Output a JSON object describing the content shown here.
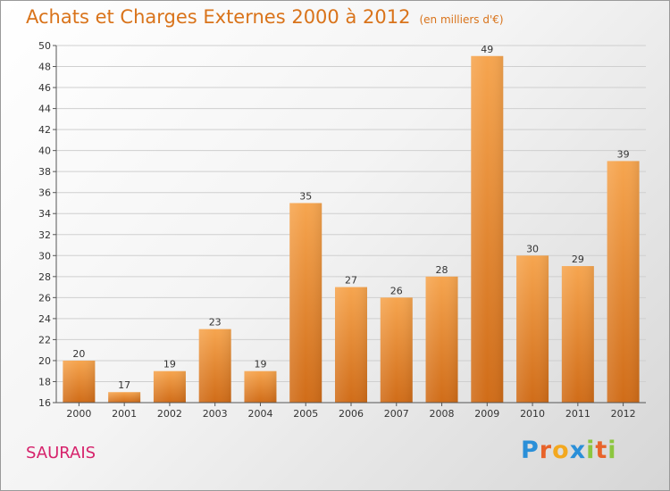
{
  "header": {
    "title": "Achats et Charges Externes 2000 à 2012",
    "subtitle": "(en milliers d'€)"
  },
  "footer": {
    "commune": "SAURAIS",
    "brand_letters": [
      {
        "char": "P",
        "color": "#2a8fd8"
      },
      {
        "char": "r",
        "color": "#e8632a"
      },
      {
        "char": "o",
        "color": "#f3a81f"
      },
      {
        "char": "x",
        "color": "#2a8fd8"
      },
      {
        "char": "i",
        "color": "#8cc63f"
      },
      {
        "char": "t",
        "color": "#e8632a"
      },
      {
        "char": "i",
        "color": "#8cc63f"
      }
    ]
  },
  "colors": {
    "bar_light": "#f6a54f",
    "bar_dark": "#d06c18",
    "grid": "#cfcfcf",
    "title": "#d9731a",
    "commune": "#d6226b"
  },
  "chart_data": {
    "type": "bar",
    "title": "Achats et Charges Externes 2000 à 2012",
    "subtitle": "(en milliers d'€)",
    "categories": [
      "2000",
      "2001",
      "2002",
      "2003",
      "2004",
      "2005",
      "2006",
      "2007",
      "2008",
      "2009",
      "2010",
      "2011",
      "2012"
    ],
    "values": [
      20,
      17,
      19,
      23,
      19,
      35,
      27,
      26,
      28,
      49,
      30,
      29,
      39
    ],
    "ylim": [
      16,
      50
    ],
    "yticks": [
      16,
      18,
      20,
      22,
      24,
      26,
      28,
      30,
      32,
      34,
      36,
      38,
      40,
      42,
      44,
      46,
      48,
      50
    ],
    "grid": true,
    "legend": "none"
  }
}
